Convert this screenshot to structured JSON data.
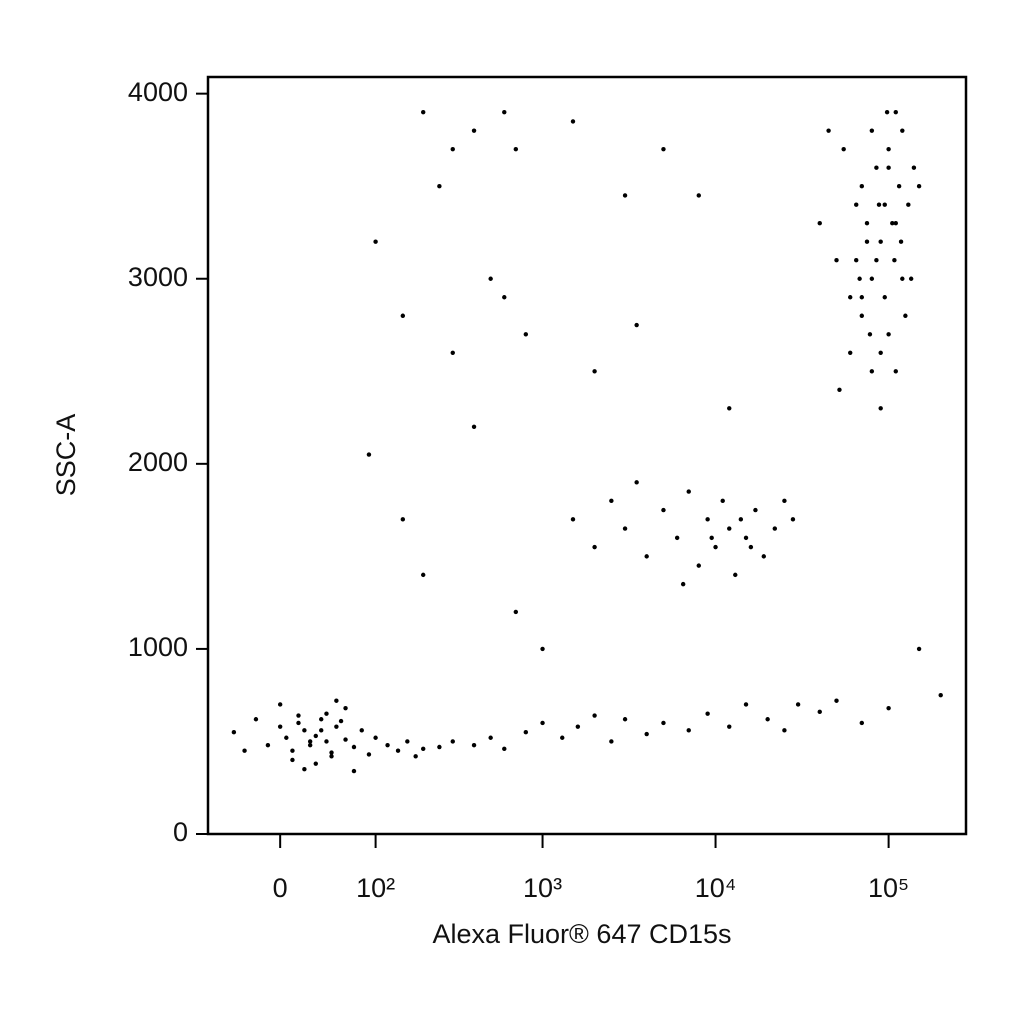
{
  "chart_data": {
    "type": "scatter",
    "x_label": "Alexa Fluor® 647 CD15s",
    "y_label": "SSC-A",
    "xscale": "biexponential",
    "color": "#000000",
    "xlim": [
      -68,
      280000
    ],
    "ylim": [
      0,
      4090
    ],
    "xticks": [
      0,
      {
        "value": 100,
        "label": "10²"
      },
      {
        "value": 1000,
        "label": "10³"
      },
      {
        "value": 10000,
        "label": "10⁴"
      },
      {
        "value": 100000,
        "label": "10⁵"
      }
    ],
    "yticks": [
      0,
      1000,
      2000,
      3000,
      4000
    ],
    "x": [
      -40,
      -20,
      -10,
      0,
      5,
      10,
      15,
      20,
      25,
      30,
      35,
      40,
      45,
      50,
      60,
      70,
      80,
      90,
      100,
      120,
      140,
      160,
      180,
      200,
      250,
      300,
      20,
      30,
      40,
      50,
      10,
      0,
      -30,
      60,
      70,
      25,
      35,
      45,
      55,
      15,
      400,
      500,
      600,
      800,
      1000,
      1300,
      1600,
      2000,
      2500,
      3000,
      4000,
      5000,
      7000,
      9000,
      12000,
      15000,
      20000,
      25000,
      30000,
      40000,
      50000,
      70000,
      100000,
      150000,
      200000,
      1500,
      2000,
      2500,
      3000,
      4000,
      5000,
      6000,
      7000,
      8000,
      9000,
      10000,
      11000,
      12000,
      13000,
      14000,
      15000,
      17000,
      19000,
      22000,
      25000,
      3500,
      6500,
      9500,
      16000,
      28000,
      40000,
      50000,
      60000,
      70000,
      80000,
      90000,
      100000,
      110000,
      120000,
      130000,
      150000,
      60000,
      70000,
      80000,
      90000,
      100000,
      110000,
      120000,
      55000,
      65000,
      75000,
      85000,
      95000,
      105000,
      115000,
      125000,
      140000,
      45000,
      52000,
      68000,
      78000,
      88000,
      98000,
      108000,
      118000,
      135000,
      80000,
      90000,
      100000,
      70000,
      110000,
      95000,
      85000,
      75000,
      65000,
      100,
      150,
      200,
      250,
      300,
      400,
      500,
      600,
      700,
      800,
      1500,
      2000,
      3000,
      5000,
      8000,
      12000,
      300,
      400,
      150,
      200,
      600,
      1000,
      3500,
      700,
      90
    ],
    "values": [
      550,
      620,
      480,
      700,
      520,
      450,
      600,
      560,
      480,
      530,
      620,
      500,
      440,
      580,
      510,
      470,
      560,
      430,
      520,
      480,
      450,
      500,
      420,
      460,
      470,
      500,
      350,
      380,
      650,
      720,
      400,
      580,
      450,
      680,
      340,
      500,
      560,
      420,
      610,
      640,
      480,
      520,
      460,
      550,
      600,
      520,
      580,
      640,
      500,
      620,
      540,
      600,
      560,
      650,
      580,
      700,
      620,
      560,
      700,
      660,
      720,
      600,
      680,
      1000,
      750,
      1700,
      1550,
      1800,
      1650,
      1500,
      1750,
      1600,
      1850,
      1450,
      1700,
      1550,
      1800,
      1650,
      1400,
      1700,
      1600,
      1750,
      1500,
      1650,
      1800,
      1900,
      1350,
      1600,
      1550,
      1700,
      3300,
      3100,
      2900,
      3500,
      3000,
      3200,
      3600,
      3300,
      3800,
      3400,
      3500,
      2600,
      2800,
      2500,
      2300,
      2700,
      3900,
      3000,
      3700,
      3400,
      3200,
      3100,
      2900,
      3300,
      3500,
      2800,
      3600,
      3800,
      2400,
      3000,
      2700,
      3400,
      3900,
      3100,
      3200,
      3000,
      3800,
      2600,
      3700,
      2900,
      2500,
      3400,
      3600,
      3300,
      3100,
      3200,
      2800,
      3900,
      3500,
      3700,
      3800,
      3000,
      3900,
      3700,
      2700,
      3850,
      2500,
      3450,
      3700,
      3450,
      2300,
      2600,
      2200,
      1700,
      1400,
      2900,
      1000,
      2750,
      1200,
      2050
    ]
  }
}
